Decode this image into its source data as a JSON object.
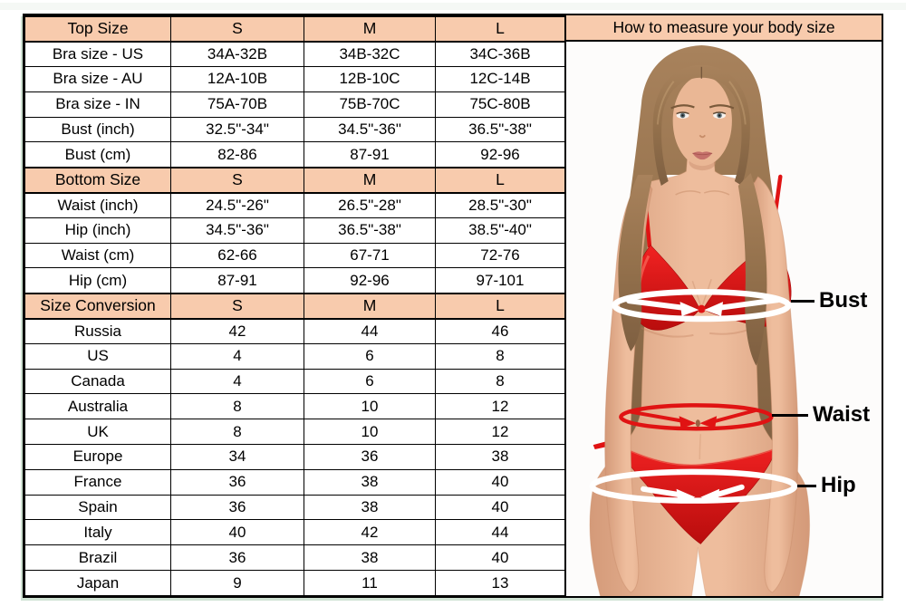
{
  "page": {
    "background": "#ffffff"
  },
  "colors": {
    "header_bg": "#F8CBAD",
    "table_border": "#000000",
    "bikini_red": "#E01313",
    "band_white": "#FFFFFF",
    "label_color": "#000000",
    "artifact_green": "#CFE2D3",
    "skin": "#E8B493",
    "hair": "#97724E"
  },
  "chart_data": {
    "type": "table",
    "layout": "three stacked sections sharing columns S / M / L, photo panel on right",
    "sections": [
      {
        "header": [
          "Top Size",
          "S",
          "M",
          "L"
        ],
        "rows": [
          [
            "Bra size - US",
            "34A-32B",
            "34B-32C",
            "34C-36B"
          ],
          [
            "Bra size - AU",
            "12A-10B",
            "12B-10C",
            "12C-14B"
          ],
          [
            "Bra size - IN",
            "75A-70B",
            "75B-70C",
            "75C-80B"
          ],
          [
            "Bust (inch)",
            "32.5\"-34\"",
            "34.5\"-36\"",
            "36.5\"-38\""
          ],
          [
            "Bust (cm)",
            "82-86",
            "87-91",
            "92-96"
          ]
        ]
      },
      {
        "header": [
          "Bottom Size",
          "S",
          "M",
          "L"
        ],
        "rows": [
          [
            "Waist (inch)",
            "24.5\"-26\"",
            "26.5\"-28\"",
            "28.5\"-30\""
          ],
          [
            "Hip (inch)",
            "34.5\"-36\"",
            "36.5\"-38\"",
            "38.5\"-40\""
          ],
          [
            "Waist (cm)",
            "62-66",
            "67-71",
            "72-76"
          ],
          [
            "Hip (cm)",
            "87-91",
            "92-96",
            "97-101"
          ]
        ]
      },
      {
        "header": [
          "Size Conversion",
          "S",
          "M",
          "L"
        ],
        "rows": [
          [
            "Russia",
            "42",
            "44",
            "46"
          ],
          [
            "US",
            "4",
            "6",
            "8"
          ],
          [
            "Canada",
            "4",
            "6",
            "8"
          ],
          [
            "Australia",
            "8",
            "10",
            "12"
          ],
          [
            "UK",
            "8",
            "10",
            "12"
          ],
          [
            "Europe",
            "34",
            "36",
            "38"
          ],
          [
            "France",
            "36",
            "38",
            "40"
          ],
          [
            "Spain",
            "36",
            "38",
            "40"
          ],
          [
            "Italy",
            "40",
            "42",
            "44"
          ],
          [
            "Brazil",
            "36",
            "38",
            "40"
          ],
          [
            "Japan",
            "9",
            "11",
            "13"
          ]
        ]
      }
    ]
  },
  "right_panel": {
    "title": "How to measure your body size",
    "labels": {
      "bust": "Bust",
      "waist": "Waist",
      "hip": "Hip"
    }
  }
}
